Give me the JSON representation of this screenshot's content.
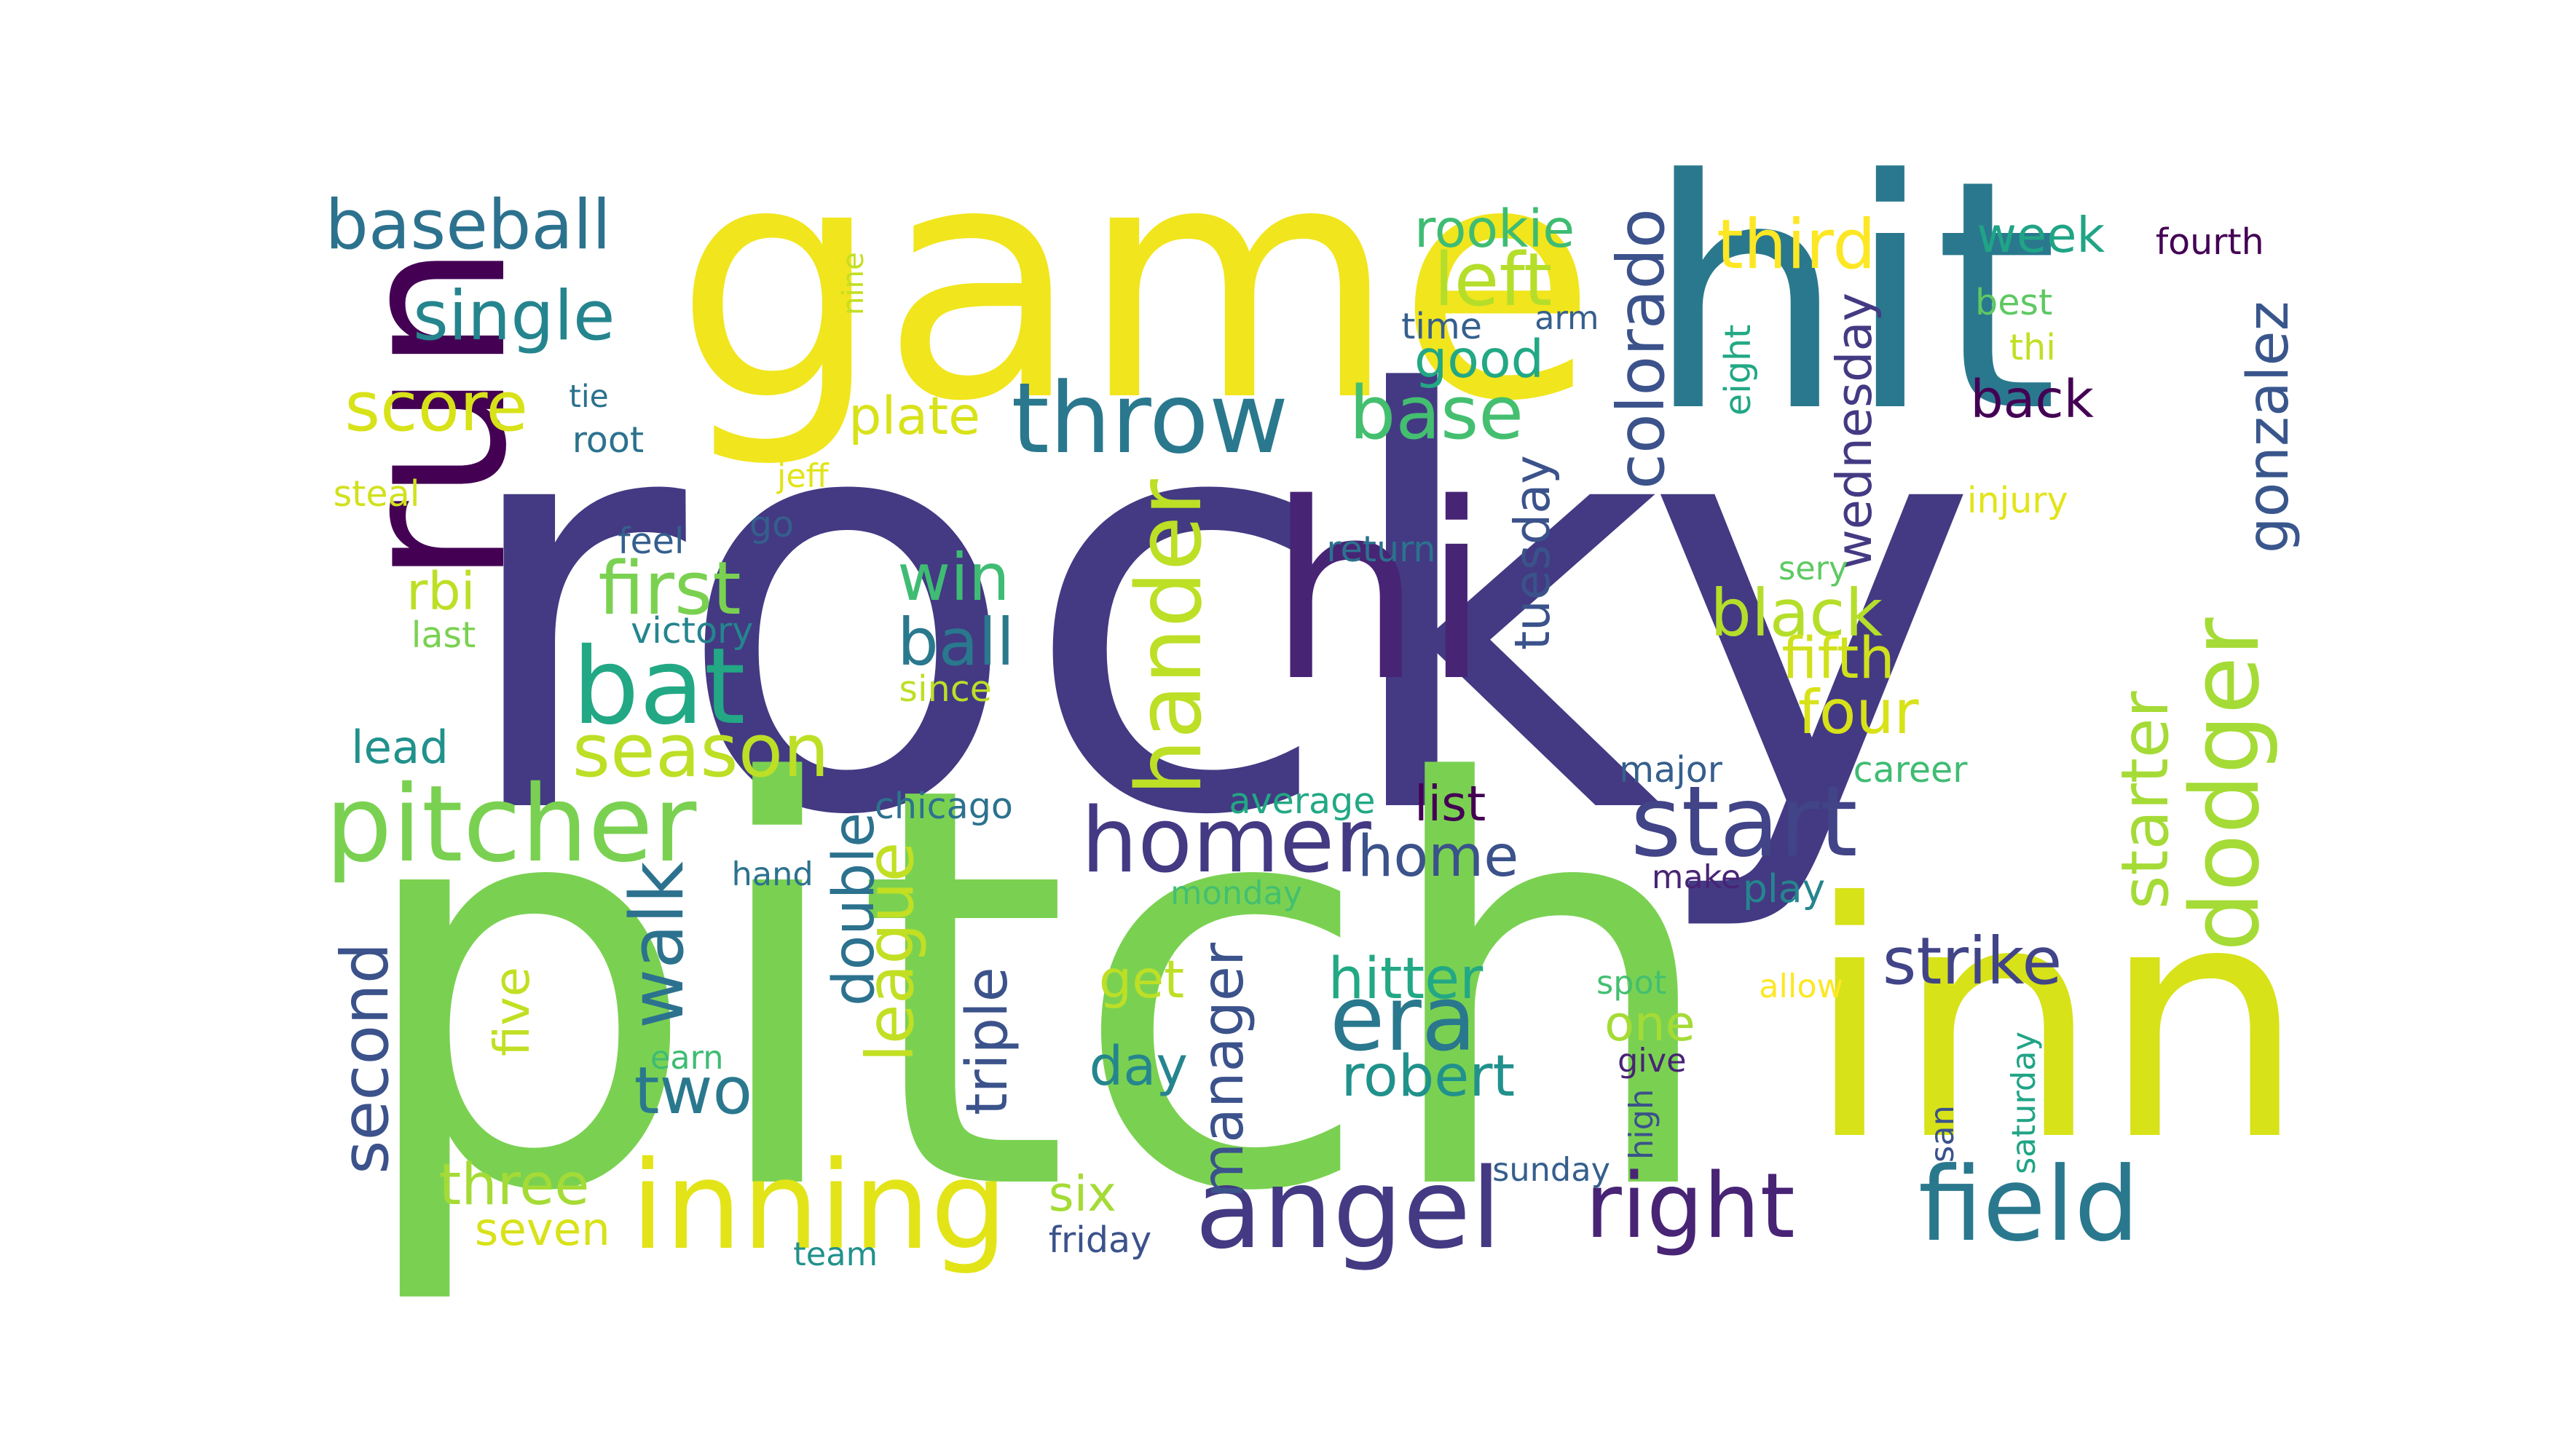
{
  "palette": {
    "background": "#ffffff",
    "dark_purple": "#440154",
    "indigo": "#433a83",
    "blue": "#355f8d",
    "teal_blue": "#2a788e",
    "teal": "#21918c",
    "green_teal": "#22a884",
    "green": "#44bf70",
    "light_green": "#7ad151",
    "lime": "#bddf26",
    "yellow": "#fde725"
  },
  "words": [
    {
      "text": "rocky",
      "color": "#433a83"
    },
    {
      "text": "pitch",
      "color": "#7ad151"
    },
    {
      "text": "game",
      "color": "#f1e51d"
    },
    {
      "text": "hit",
      "color": "#2a788e"
    },
    {
      "text": "inn",
      "color": "#d7e219"
    },
    {
      "text": "run",
      "color": "#440154"
    },
    {
      "text": "hi",
      "color": "#482475"
    },
    {
      "text": "throw",
      "color": "#2a788e"
    },
    {
      "text": "pitcher",
      "color": "#7ad151"
    },
    {
      "text": "homer",
      "color": "#433a83"
    },
    {
      "text": "inning",
      "color": "#e2e418"
    },
    {
      "text": "angel",
      "color": "#433a83"
    },
    {
      "text": "right",
      "color": "#482475"
    },
    {
      "text": "field",
      "color": "#2a788e"
    },
    {
      "text": "start",
      "color": "#414487"
    },
    {
      "text": "bat",
      "color": "#22a884"
    },
    {
      "text": "hander",
      "color": "#bddf26"
    },
    {
      "text": "dodger",
      "color": "#a5db36"
    },
    {
      "text": "era",
      "color": "#2a788e"
    },
    {
      "text": "season",
      "color": "#bddf26"
    },
    {
      "text": "baseball",
      "color": "#2c728e"
    },
    {
      "text": "single",
      "color": "#25858e"
    },
    {
      "text": "score",
      "color": "#d8e219"
    },
    {
      "text": "base",
      "color": "#44bf70"
    },
    {
      "text": "left",
      "color": "#b5de2b"
    },
    {
      "text": "third",
      "color": "#fde725"
    },
    {
      "text": "colorado",
      "color": "#3b528b"
    },
    {
      "text": "rookie",
      "color": "#3fbc73"
    },
    {
      "text": "week",
      "color": "#20a486"
    },
    {
      "text": "fourth",
      "color": "#440154"
    },
    {
      "text": "gonzalez",
      "color": "#39568c"
    },
    {
      "text": "first",
      "color": "#7ad151"
    },
    {
      "text": "win",
      "color": "#3fbc73"
    },
    {
      "text": "ball",
      "color": "#2a788e"
    },
    {
      "text": "black",
      "color": "#b5de2b"
    },
    {
      "text": "fifth",
      "color": "#d0e11c"
    },
    {
      "text": "four",
      "color": "#d8e219"
    },
    {
      "text": "walk",
      "color": "#2c728e"
    },
    {
      "text": "home",
      "color": "#3b528b"
    },
    {
      "text": "hitter",
      "color": "#22a884"
    },
    {
      "text": "robert",
      "color": "#21918c"
    },
    {
      "text": "strike",
      "color": "#414487"
    },
    {
      "text": "starter",
      "color": "#a5db36"
    },
    {
      "text": "second",
      "color": "#3b528b"
    },
    {
      "text": "double",
      "color": "#2c728e"
    },
    {
      "text": "league",
      "color": "#c2df23"
    },
    {
      "text": "two",
      "color": "#2a788e"
    },
    {
      "text": "three",
      "color": "#a5db36"
    },
    {
      "text": "manager",
      "color": "#3b528b"
    },
    {
      "text": "triple",
      "color": "#3b528b"
    },
    {
      "text": "wednesday",
      "color": "#433a83"
    },
    {
      "text": "tuesday",
      "color": "#3b528b"
    },
    {
      "text": "plate",
      "color": "#d8e219"
    },
    {
      "text": "good",
      "color": "#22a884"
    },
    {
      "text": "back",
      "color": "#440154"
    },
    {
      "text": "list",
      "color": "#440154"
    },
    {
      "text": "day",
      "color": "#25858e"
    },
    {
      "text": "get",
      "color": "#bddf26"
    },
    {
      "text": "six",
      "color": "#a5db36"
    },
    {
      "text": "one",
      "color": "#a5db36"
    },
    {
      "text": "five",
      "color": "#c2df23"
    },
    {
      "text": "rbi",
      "color": "#bddf26"
    },
    {
      "text": "lead",
      "color": "#21918c"
    },
    {
      "text": "seven",
      "color": "#d8e219"
    },
    {
      "text": "eight",
      "color": "#22a884"
    },
    {
      "text": "nine",
      "color": "#c2df23"
    },
    {
      "text": "time",
      "color": "#355f8d"
    },
    {
      "text": "arm",
      "color": "#355f8d"
    },
    {
      "text": "best",
      "color": "#5ec962"
    },
    {
      "text": "thi",
      "color": "#c2df23"
    },
    {
      "text": "injury",
      "color": "#e2e418"
    },
    {
      "text": "tie",
      "color": "#2c728e"
    },
    {
      "text": "root",
      "color": "#2c728e"
    },
    {
      "text": "jeff",
      "color": "#e2e418"
    },
    {
      "text": "steal",
      "color": "#d0e11c"
    },
    {
      "text": "go",
      "color": "#355f8d"
    },
    {
      "text": "feel",
      "color": "#355f8d"
    },
    {
      "text": "return",
      "color": "#2c728e"
    },
    {
      "text": "sery",
      "color": "#5ec962"
    },
    {
      "text": "victory",
      "color": "#25858e"
    },
    {
      "text": "last",
      "color": "#7ad151"
    },
    {
      "text": "since",
      "color": "#bddf26"
    },
    {
      "text": "major",
      "color": "#355f8d"
    },
    {
      "text": "career",
      "color": "#3fbc73"
    },
    {
      "text": "chicago",
      "color": "#2c728e"
    },
    {
      "text": "average",
      "color": "#22a884"
    },
    {
      "text": "hand",
      "color": "#2c728e"
    },
    {
      "text": "monday",
      "color": "#44bf70"
    },
    {
      "text": "make",
      "color": "#482475"
    },
    {
      "text": "play",
      "color": "#25858e"
    },
    {
      "text": "spot",
      "color": "#44bf70"
    },
    {
      "text": "allow",
      "color": "#fde725"
    },
    {
      "text": "earn",
      "color": "#3fbc73"
    },
    {
      "text": "give",
      "color": "#482475"
    },
    {
      "text": "high",
      "color": "#3b528b"
    },
    {
      "text": "san",
      "color": "#3b528b"
    },
    {
      "text": "saturday",
      "color": "#20a486"
    },
    {
      "text": "sunday",
      "color": "#355f8d"
    },
    {
      "text": "friday",
      "color": "#3b528b"
    },
    {
      "text": "team",
      "color": "#21918c"
    }
  ]
}
